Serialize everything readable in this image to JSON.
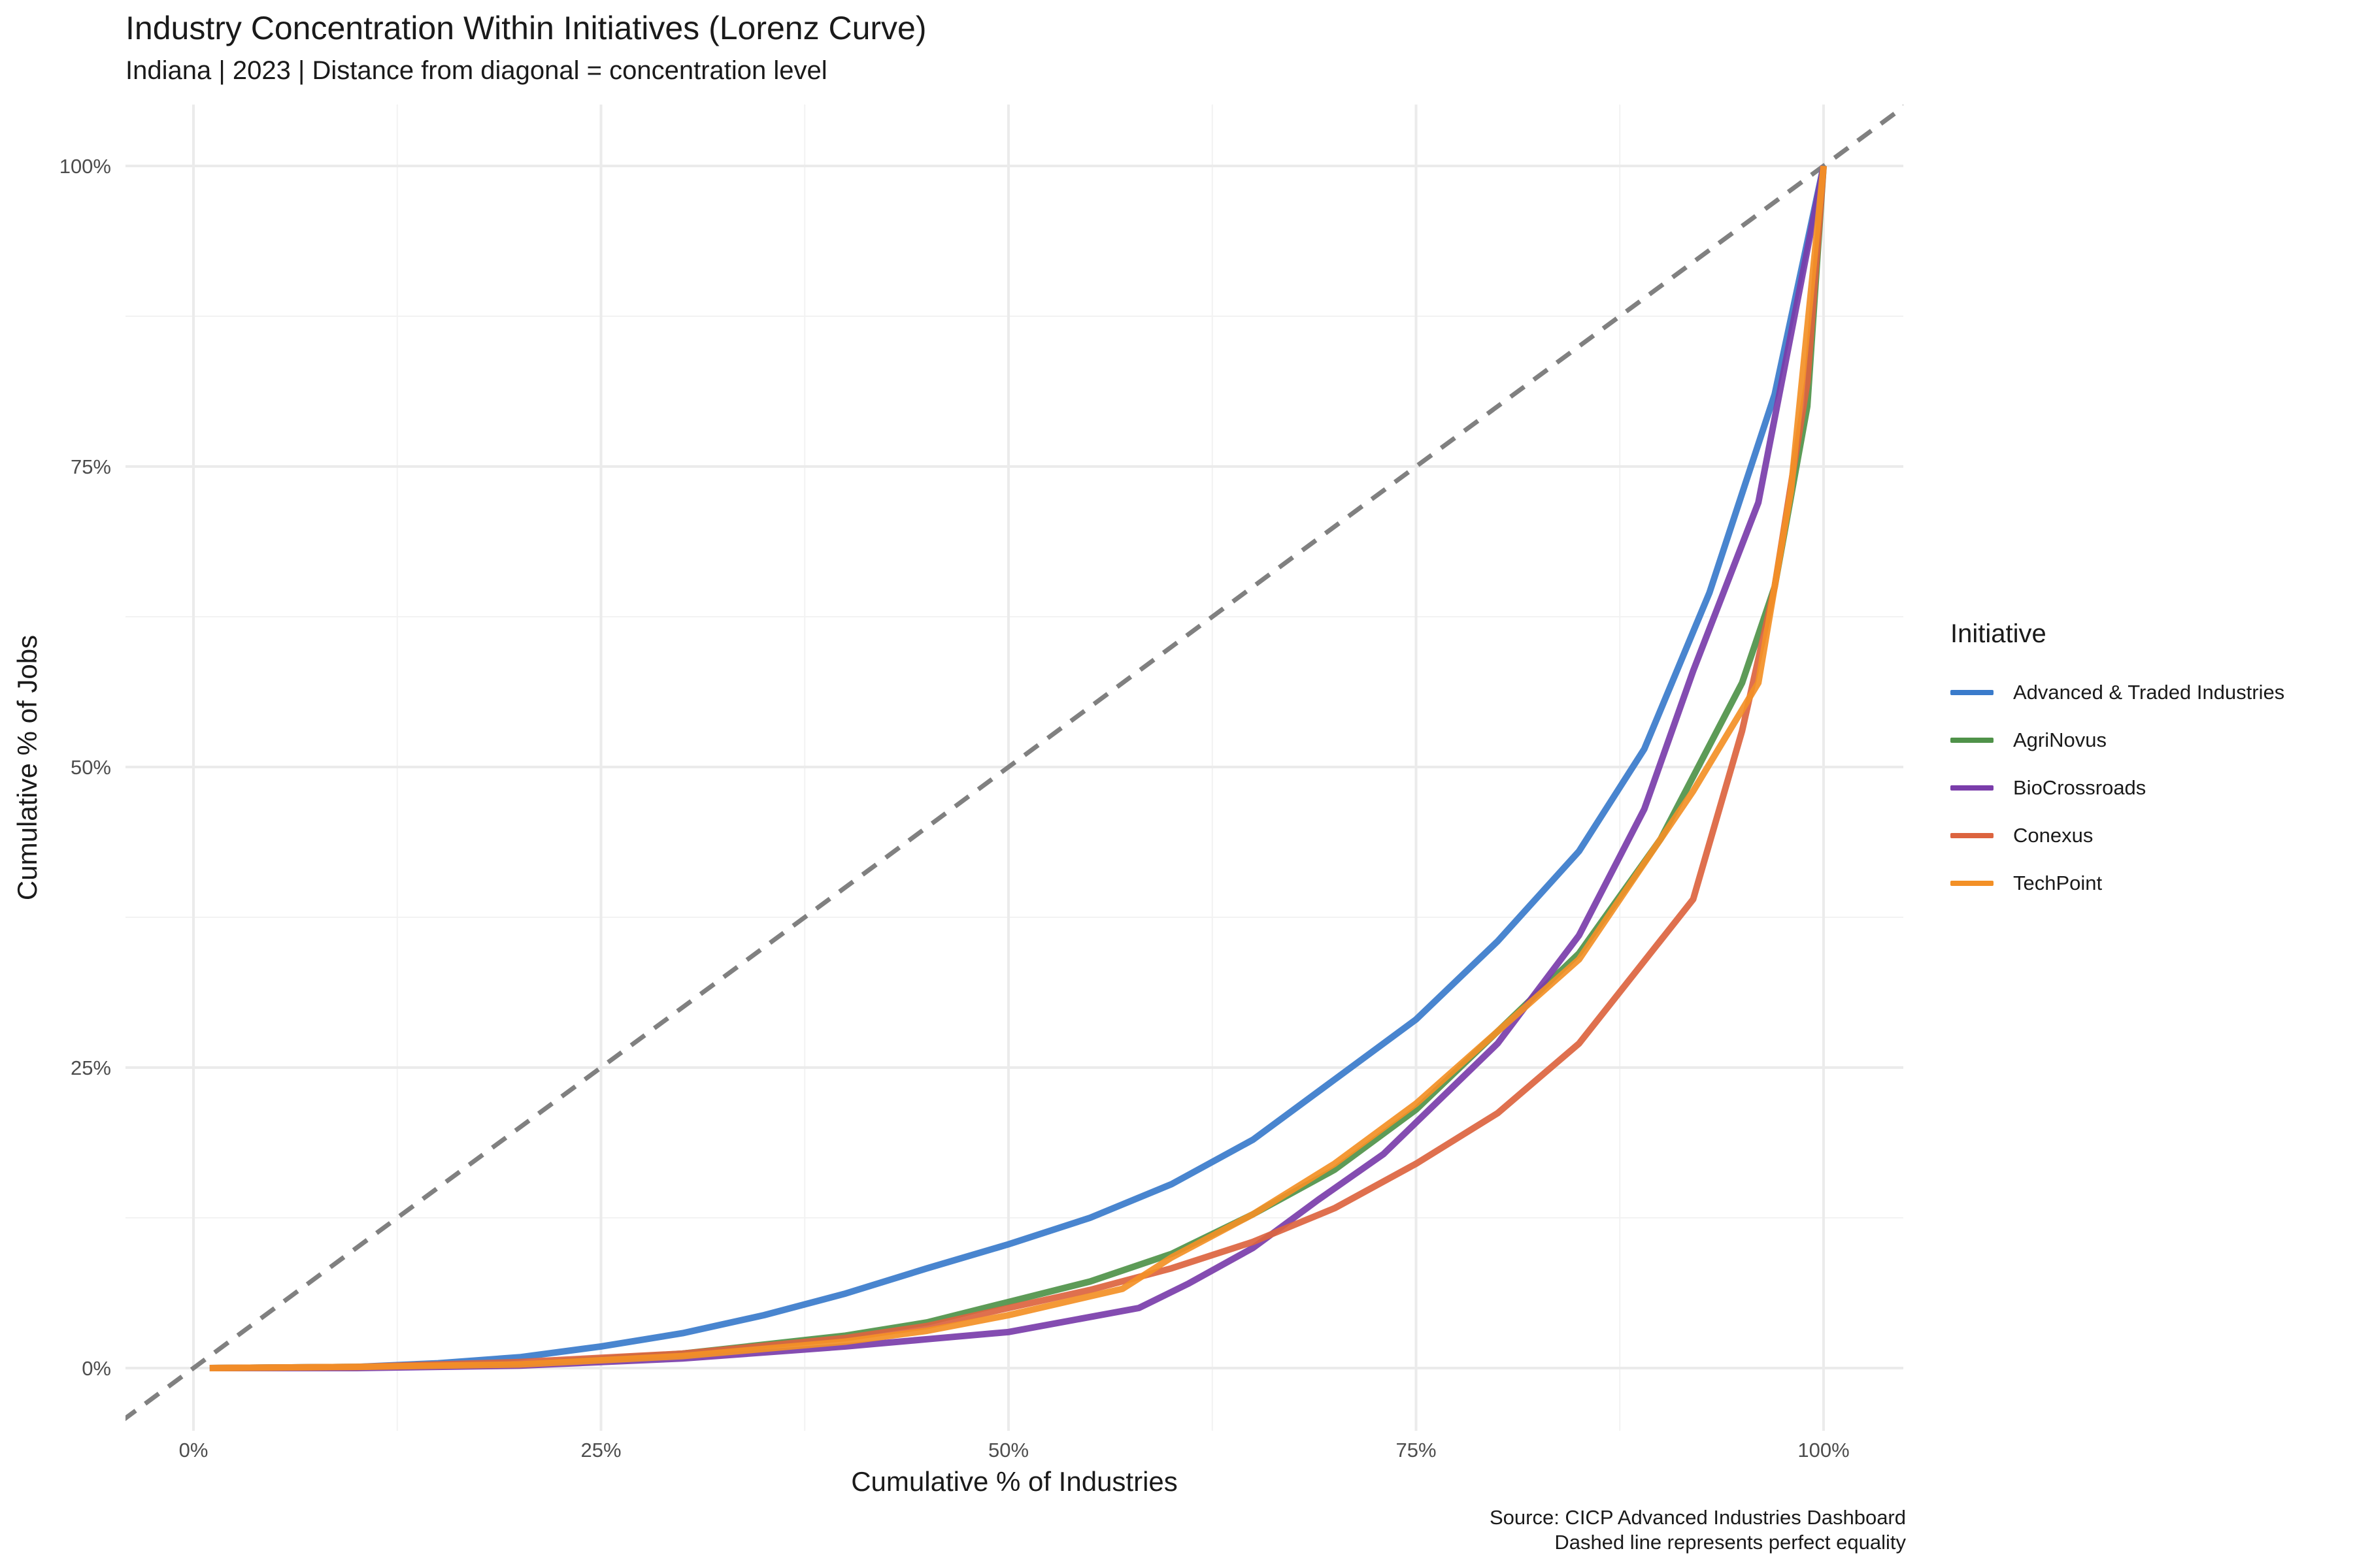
{
  "title": "Industry Concentration Within Initiatives (Lorenz Curve)",
  "subtitle": "Indiana | 2023 | Distance from diagonal = concentration level",
  "caption": {
    "line1": "Source: CICP Advanced Industries Dashboard",
    "line2": "Dashed line represents perfect equality"
  },
  "chart_data": {
    "type": "line",
    "xlabel": "Cumulative % of Industries",
    "ylabel": "Cumulative % of Jobs",
    "xlim": [
      0,
      1
    ],
    "ylim": [
      0,
      1
    ],
    "x_ticks": [
      "0%",
      "25%",
      "50%",
      "75%",
      "100%"
    ],
    "y_ticks": [
      "0%",
      "25%",
      "50%",
      "75%",
      "100%"
    ],
    "grid": true,
    "legend_title": "Initiative",
    "legend_position": "right",
    "reference_line": {
      "from": [
        0,
        0
      ],
      "to": [
        1,
        1
      ],
      "style": "dashed",
      "color": "#808080"
    },
    "series": [
      {
        "name": "Advanced & Traded Industries",
        "color": "#3A7BCB",
        "points": [
          [
            0.01,
            0.0
          ],
          [
            0.1,
            0.001
          ],
          [
            0.15,
            0.004
          ],
          [
            0.2,
            0.009
          ],
          [
            0.25,
            0.018
          ],
          [
            0.3,
            0.029
          ],
          [
            0.35,
            0.044
          ],
          [
            0.4,
            0.062
          ],
          [
            0.45,
            0.083
          ],
          [
            0.5,
            0.103
          ],
          [
            0.55,
            0.125
          ],
          [
            0.6,
            0.153
          ],
          [
            0.65,
            0.19
          ],
          [
            0.7,
            0.24
          ],
          [
            0.75,
            0.29
          ],
          [
            0.8,
            0.355
          ],
          [
            0.85,
            0.43
          ],
          [
            0.89,
            0.515
          ],
          [
            0.93,
            0.645
          ],
          [
            0.97,
            0.81
          ],
          [
            1.0,
            1.0
          ]
        ]
      },
      {
        "name": "AgriNovus",
        "color": "#4F9249",
        "points": [
          [
            0.01,
            0.0
          ],
          [
            0.1,
            0.001
          ],
          [
            0.2,
            0.003
          ],
          [
            0.3,
            0.012
          ],
          [
            0.4,
            0.027
          ],
          [
            0.45,
            0.038
          ],
          [
            0.5,
            0.055
          ],
          [
            0.55,
            0.072
          ],
          [
            0.6,
            0.095
          ],
          [
            0.65,
            0.128
          ],
          [
            0.7,
            0.165
          ],
          [
            0.75,
            0.215
          ],
          [
            0.8,
            0.28
          ],
          [
            0.85,
            0.345
          ],
          [
            0.9,
            0.44
          ],
          [
            0.95,
            0.57
          ],
          [
            0.97,
            0.65
          ],
          [
            0.99,
            0.8
          ],
          [
            1.0,
            1.0
          ]
        ]
      },
      {
        "name": "BioCrossroads",
        "color": "#7A3DAA",
        "points": [
          [
            0.01,
            0.0
          ],
          [
            0.1,
            0.0
          ],
          [
            0.2,
            0.002
          ],
          [
            0.3,
            0.008
          ],
          [
            0.4,
            0.018
          ],
          [
            0.45,
            0.024
          ],
          [
            0.5,
            0.03
          ],
          [
            0.58,
            0.05
          ],
          [
            0.61,
            0.07
          ],
          [
            0.65,
            0.1
          ],
          [
            0.69,
            0.14
          ],
          [
            0.73,
            0.178
          ],
          [
            0.8,
            0.27
          ],
          [
            0.85,
            0.36
          ],
          [
            0.89,
            0.465
          ],
          [
            0.92,
            0.58
          ],
          [
            0.96,
            0.72
          ],
          [
            1.0,
            1.0
          ]
        ]
      },
      {
        "name": "Conexus",
        "color": "#DC643F",
        "points": [
          [
            0.01,
            0.0
          ],
          [
            0.1,
            0.001
          ],
          [
            0.2,
            0.005
          ],
          [
            0.3,
            0.012
          ],
          [
            0.4,
            0.025
          ],
          [
            0.45,
            0.035
          ],
          [
            0.5,
            0.05
          ],
          [
            0.55,
            0.065
          ],
          [
            0.6,
            0.083
          ],
          [
            0.65,
            0.105
          ],
          [
            0.7,
            0.133
          ],
          [
            0.75,
            0.17
          ],
          [
            0.8,
            0.212
          ],
          [
            0.85,
            0.27
          ],
          [
            0.885,
            0.33
          ],
          [
            0.92,
            0.39
          ],
          [
            0.95,
            0.53
          ],
          [
            0.97,
            0.65
          ],
          [
            0.99,
            0.82
          ],
          [
            1.0,
            1.0
          ]
        ]
      },
      {
        "name": "TechPoint",
        "color": "#F39026",
        "points": [
          [
            0.01,
            0.0
          ],
          [
            0.1,
            0.001
          ],
          [
            0.2,
            0.003
          ],
          [
            0.3,
            0.01
          ],
          [
            0.4,
            0.022
          ],
          [
            0.45,
            0.031
          ],
          [
            0.5,
            0.044
          ],
          [
            0.57,
            0.066
          ],
          [
            0.6,
            0.092
          ],
          [
            0.65,
            0.128
          ],
          [
            0.7,
            0.17
          ],
          [
            0.75,
            0.22
          ],
          [
            0.8,
            0.28
          ],
          [
            0.85,
            0.34
          ],
          [
            0.88,
            0.4
          ],
          [
            0.92,
            0.48
          ],
          [
            0.96,
            0.57
          ],
          [
            0.98,
            0.73
          ],
          [
            1.0,
            1.0
          ]
        ]
      }
    ]
  }
}
